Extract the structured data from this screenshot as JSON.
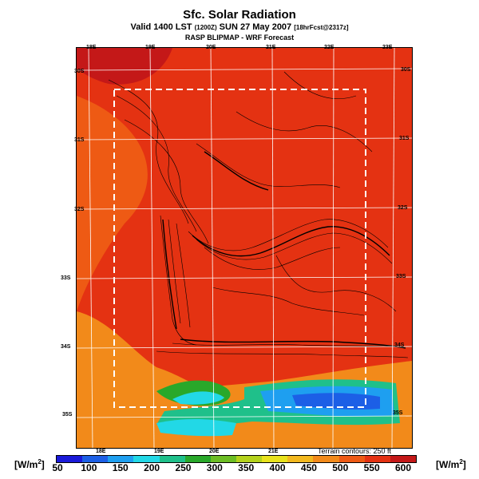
{
  "title": "Sfc. Solar Radiation",
  "subtitle_main": "Valid 1400 LST",
  "subtitle_small": "(1200Z)",
  "subtitle_date": "SUN 27 May 2007",
  "subtitle_fcst": "[18hrFcst@2317z]",
  "source": "RASP BLIPMAP - WRF Forecast",
  "terrain_note": "Terrain contours: 250 ft",
  "unit_left": "[W/m",
  "unit_right": "[W/m",
  "unit_exp": "2",
  "unit_close": "]",
  "lon_labels_top": [
    "18E",
    "19E",
    "20E",
    "21E",
    "22E",
    "23E"
  ],
  "lon_labels_bottom": [
    "18E",
    "19E",
    "20E",
    "21E"
  ],
  "lat_labels_right": [
    "30S",
    "31S",
    "32S",
    "33S",
    "34S",
    "35S"
  ],
  "lat_labels_left": [
    "30S",
    "31S",
    "32S",
    "33S",
    "34S",
    "35S"
  ],
  "colorbar": {
    "labels": [
      "50",
      "100",
      "150",
      "200",
      "250",
      "300",
      "350",
      "400",
      "450",
      "500",
      "550",
      "600"
    ],
    "colors": [
      "#1a1ad9",
      "#1c5fe6",
      "#1e9ff0",
      "#22d8e6",
      "#1fc08a",
      "#29a82a",
      "#6cbd24",
      "#b4d21c",
      "#e8e21c",
      "#f2b81e",
      "#f28a1a",
      "#ee5a14",
      "#e43212",
      "#c41818"
    ]
  },
  "colors": {
    "high": "#e43212",
    "peak": "#c41818",
    "mid": "#ee5a14",
    "low": "#f28a1a"
  }
}
